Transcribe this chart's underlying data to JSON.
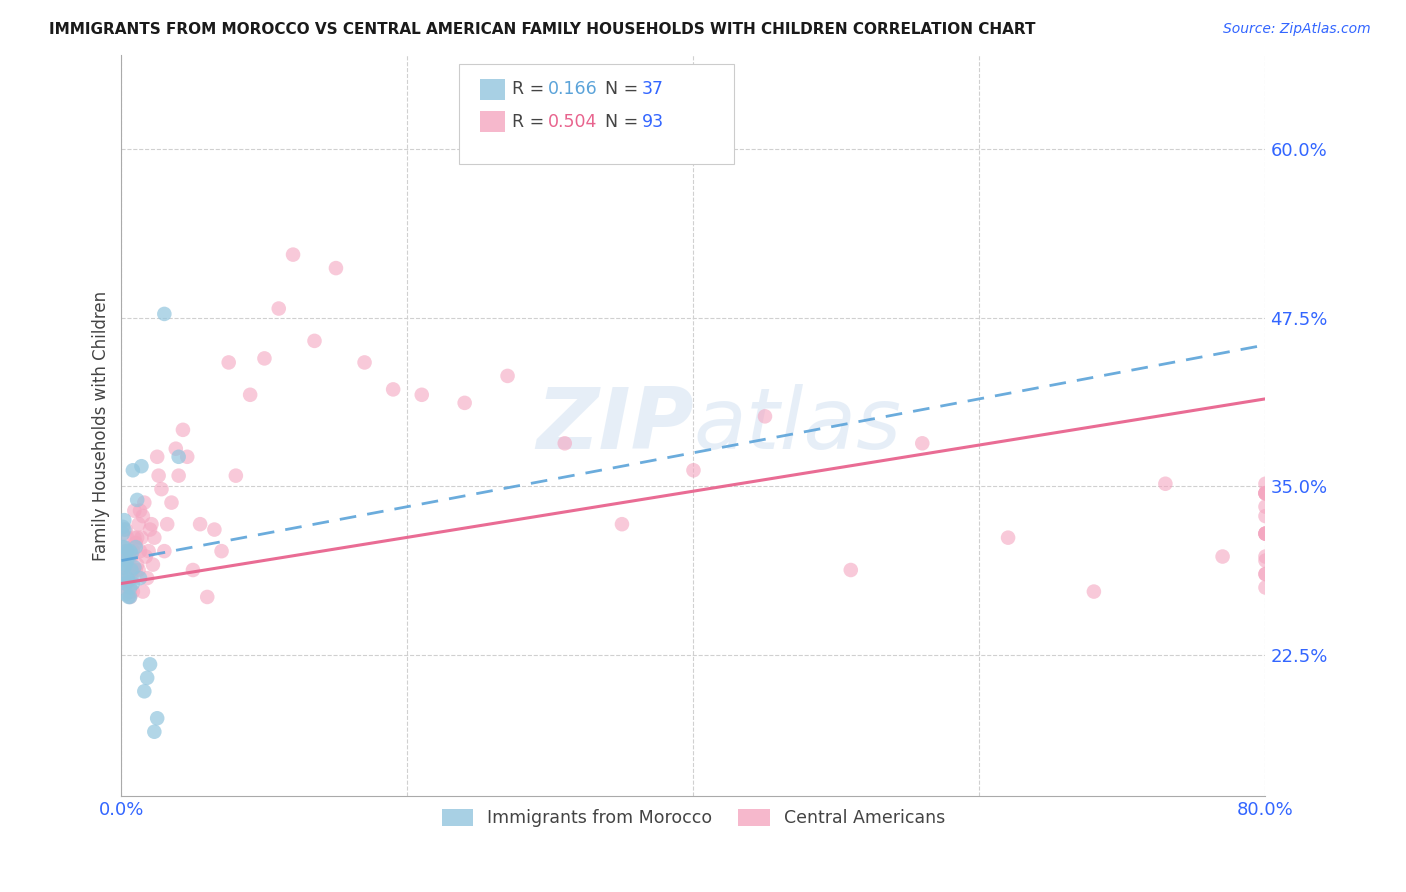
{
  "title": "IMMIGRANTS FROM MOROCCO VS CENTRAL AMERICAN FAMILY HOUSEHOLDS WITH CHILDREN CORRELATION CHART",
  "source": "Source: ZipAtlas.com",
  "ylabel": "Family Households with Children",
  "xlim": [
    0.0,
    0.8
  ],
  "ylim": [
    0.12,
    0.67
  ],
  "yticks": [
    0.225,
    0.35,
    0.475,
    0.6
  ],
  "ytick_labels": [
    "22.5%",
    "35.0%",
    "47.5%",
    "60.0%"
  ],
  "xticks": [
    0.0,
    0.2,
    0.4,
    0.6,
    0.8
  ],
  "xtick_labels": [
    "0.0%",
    "",
    "",
    "",
    "80.0%"
  ],
  "watermark": "ZIPatlas",
  "blue_color": "#92c5de",
  "pink_color": "#f4a6c0",
  "blue_line_color": "#5ba3d9",
  "pink_line_color": "#e8648e",
  "title_color": "#1a1a1a",
  "axis_label_color": "#444444",
  "tick_label_color": "#3366ff",
  "grid_color": "#d0d0d0",
  "blue_trend_start_y": 0.295,
  "blue_trend_end_y": 0.455,
  "pink_trend_start_y": 0.278,
  "pink_trend_end_y": 0.415,
  "blue_scatter_x": [
    0.001,
    0.001,
    0.001,
    0.001,
    0.002,
    0.002,
    0.002,
    0.002,
    0.002,
    0.003,
    0.003,
    0.003,
    0.003,
    0.004,
    0.004,
    0.004,
    0.005,
    0.005,
    0.006,
    0.006,
    0.006,
    0.007,
    0.007,
    0.008,
    0.008,
    0.009,
    0.01,
    0.011,
    0.013,
    0.014,
    0.016,
    0.018,
    0.02,
    0.023,
    0.025,
    0.03,
    0.04
  ],
  "blue_scatter_y": [
    0.29,
    0.305,
    0.315,
    0.32,
    0.28,
    0.29,
    0.305,
    0.318,
    0.325,
    0.27,
    0.278,
    0.292,
    0.3,
    0.282,
    0.295,
    0.302,
    0.268,
    0.28,
    0.268,
    0.275,
    0.302,
    0.288,
    0.3,
    0.278,
    0.362,
    0.29,
    0.305,
    0.34,
    0.282,
    0.365,
    0.198,
    0.208,
    0.218,
    0.168,
    0.178,
    0.478,
    0.372
  ],
  "pink_scatter_x": [
    0.001,
    0.001,
    0.002,
    0.003,
    0.003,
    0.003,
    0.004,
    0.004,
    0.005,
    0.005,
    0.006,
    0.006,
    0.006,
    0.007,
    0.007,
    0.008,
    0.008,
    0.008,
    0.009,
    0.009,
    0.01,
    0.01,
    0.011,
    0.011,
    0.012,
    0.012,
    0.013,
    0.013,
    0.014,
    0.015,
    0.015,
    0.016,
    0.017,
    0.018,
    0.019,
    0.02,
    0.021,
    0.022,
    0.023,
    0.025,
    0.026,
    0.028,
    0.03,
    0.032,
    0.035,
    0.038,
    0.04,
    0.043,
    0.046,
    0.05,
    0.055,
    0.06,
    0.065,
    0.07,
    0.075,
    0.08,
    0.09,
    0.1,
    0.11,
    0.12,
    0.135,
    0.15,
    0.17,
    0.19,
    0.21,
    0.24,
    0.27,
    0.31,
    0.35,
    0.4,
    0.45,
    0.51,
    0.56,
    0.62,
    0.68,
    0.73,
    0.77,
    0.8,
    0.8,
    0.8,
    0.8,
    0.8,
    0.8,
    0.8,
    0.8,
    0.8,
    0.8,
    0.8,
    0.8,
    0.8,
    0.8,
    0.8,
    0.8
  ],
  "pink_scatter_y": [
    0.282,
    0.302,
    0.275,
    0.278,
    0.302,
    0.318,
    0.282,
    0.312,
    0.288,
    0.302,
    0.268,
    0.272,
    0.302,
    0.282,
    0.298,
    0.272,
    0.288,
    0.302,
    0.312,
    0.332,
    0.288,
    0.308,
    0.292,
    0.312,
    0.288,
    0.322,
    0.302,
    0.332,
    0.312,
    0.272,
    0.328,
    0.338,
    0.298,
    0.282,
    0.302,
    0.318,
    0.322,
    0.292,
    0.312,
    0.372,
    0.358,
    0.348,
    0.302,
    0.322,
    0.338,
    0.378,
    0.358,
    0.392,
    0.372,
    0.288,
    0.322,
    0.268,
    0.318,
    0.302,
    0.442,
    0.358,
    0.418,
    0.445,
    0.482,
    0.522,
    0.458,
    0.512,
    0.442,
    0.422,
    0.418,
    0.412,
    0.432,
    0.382,
    0.322,
    0.362,
    0.402,
    0.288,
    0.382,
    0.312,
    0.272,
    0.352,
    0.298,
    0.335,
    0.295,
    0.345,
    0.315,
    0.285,
    0.345,
    0.275,
    0.328,
    0.298,
    0.352,
    0.315,
    0.285,
    0.345,
    0.315,
    0.345,
    0.315
  ]
}
